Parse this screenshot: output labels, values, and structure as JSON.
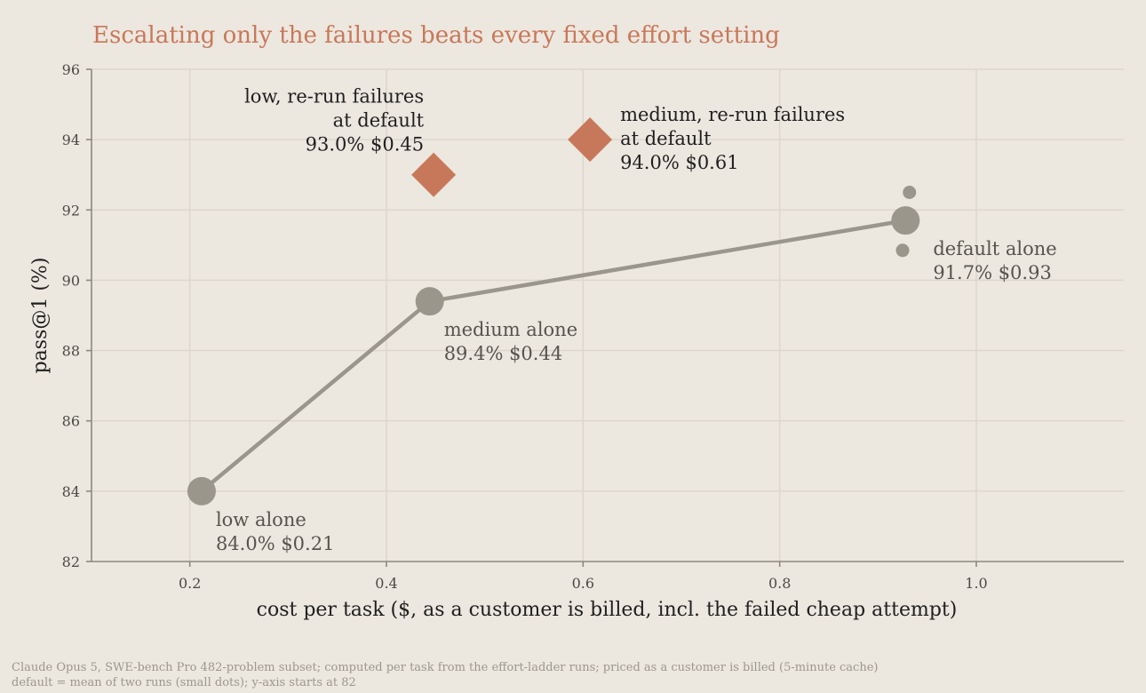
{
  "colors": {
    "background": "#ece7df",
    "title": "#c8785a",
    "fixed_series": "#9a968c",
    "escalation": "#c8785a",
    "grid": "#dcd6cb",
    "footnote": "#9c978e"
  },
  "chart_data": {
    "type": "scatter",
    "title": "Escalating only the failures beats every fixed effort setting",
    "xlabel": "cost per task ($, as a customer is billed, incl. the failed cheap attempt)",
    "ylabel": "pass@1 (%)",
    "xlim": [
      0.1,
      1.15
    ],
    "ylim": [
      82,
      96
    ],
    "xticks": [
      "0.2",
      "0.4",
      "0.6",
      "0.8",
      "1.0"
    ],
    "yticks": [
      "82",
      "84",
      "86",
      "88",
      "90",
      "92",
      "94",
      "96"
    ],
    "grid": true,
    "series": [
      {
        "marker": "circle",
        "connected": true,
        "points": [
          {
            "x": 0.212,
            "y": 84.0,
            "label_lines": [
              "low alone",
              "84.0%  $0.21"
            ]
          },
          {
            "x": 0.444,
            "y": 89.4,
            "label_lines": [
              "medium alone",
              "89.4%  $0.44"
            ]
          },
          {
            "x": 0.928,
            "y": 91.7,
            "label_lines": [
              "default alone",
              "91.7%  $0.93"
            ]
          }
        ]
      },
      {
        "marker": "small-circle",
        "points": [
          {
            "x": 0.932,
            "y": 92.5
          },
          {
            "x": 0.925,
            "y": 90.85
          }
        ]
      },
      {
        "marker": "diamond",
        "points": [
          {
            "x": 0.448,
            "y": 93.0,
            "label_lines": [
              "low, re-run failures",
              "at default",
              "93.0%  $0.45"
            ]
          },
          {
            "x": 0.607,
            "y": 94.0,
            "label_lines": [
              "medium, re-run failures",
              "at default",
              "94.0%  $0.61"
            ]
          }
        ]
      }
    ],
    "footnote": [
      "Claude Opus 5, SWE-bench Pro 482-problem subset; computed per task from the effort-ladder runs; priced as a customer is billed (5-minute cache)",
      "default = mean of two runs (small dots); y-axis starts at 82"
    ]
  }
}
